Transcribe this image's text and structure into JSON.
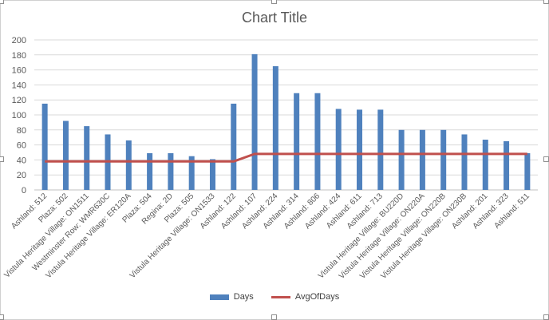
{
  "chart_data": {
    "type": "bar",
    "title": "Chart Title",
    "categories": [
      "Ashland: 512",
      "Plaza: 502",
      "Vistula Heritage Village: ON1511",
      "Westminster Row: WMR630C",
      "Vistula Heritage Village: ER120A",
      "Plaza: 504",
      "Regina: 2D",
      "Plaza: 505",
      "Vistula Heritage Village: ON1533",
      "Ashland: 122",
      "Ashland: 107",
      "Ashland: 224",
      "Ashland: 314",
      "Ashland: 806",
      "Ashland: 424",
      "Ashland: 611",
      "Ashland: 713",
      "Vistula Heritage Village: BU220D",
      "Vistula Heritage Village: ON220A",
      "Vistula Heritage Village: ON220B",
      "Vistula Heritage Village: ON230B",
      "Ashland: 201",
      "Ashland: 323",
      "Ashland: 511"
    ],
    "series": [
      {
        "name": "Days",
        "type": "bar",
        "color": "#4f81bd",
        "values": [
          115,
          92,
          85,
          74,
          66,
          49,
          49,
          45,
          41,
          115,
          181,
          165,
          129,
          129,
          108,
          107,
          107,
          80,
          80,
          80,
          74,
          67,
          65,
          49
        ]
      },
      {
        "name": "AvgOfDays",
        "type": "line",
        "color": "#c0504d",
        "values": [
          38,
          38,
          38,
          38,
          38,
          38,
          38,
          38,
          38,
          38,
          48,
          48,
          48,
          48,
          48,
          48,
          48,
          48,
          48,
          48,
          48,
          48,
          48,
          48
        ]
      }
    ],
    "ylim": [
      0,
      200
    ],
    "yticks": [
      0,
      20,
      40,
      60,
      80,
      100,
      120,
      140,
      160,
      180,
      200
    ],
    "grid": true,
    "legend_position": "bottom",
    "xlabel": "",
    "ylabel": ""
  }
}
